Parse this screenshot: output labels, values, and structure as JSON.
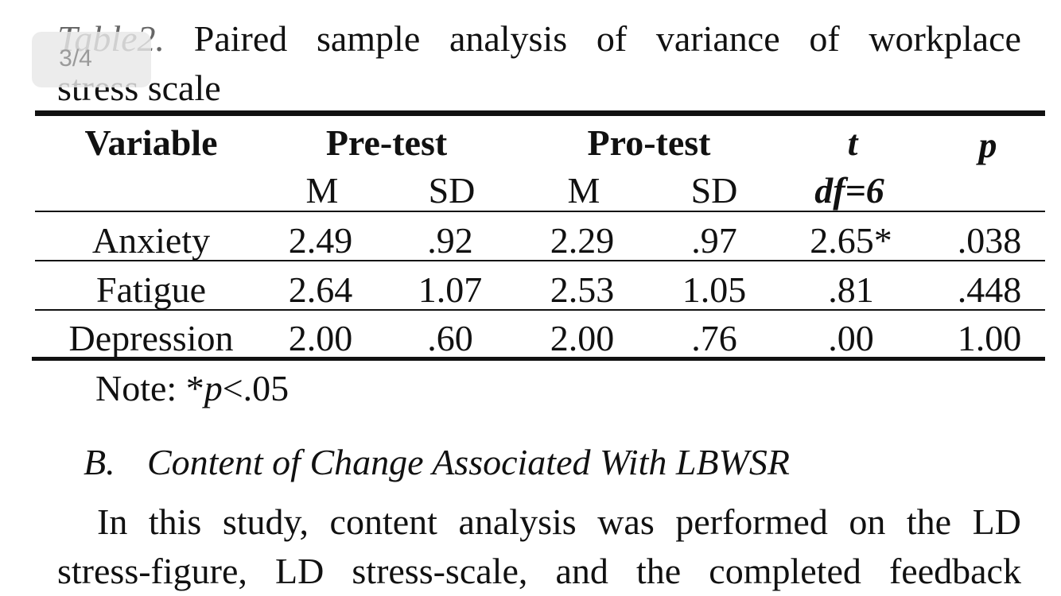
{
  "overlay": {
    "page_counter": "3/4"
  },
  "caption": {
    "label": "Table2.",
    "line1_words": [
      "Paired",
      "sample",
      "analysis",
      "of",
      "variance",
      "of",
      "workplace"
    ],
    "line2": "stress scale"
  },
  "table": {
    "headers": {
      "variable": "Variable",
      "pre_test": "Pre-test",
      "pro_test": "Pro-test",
      "t": "t",
      "p": "p"
    },
    "subheaders": {
      "pre_m": "M",
      "pre_sd": "SD",
      "pro_m": "M",
      "pro_sd": "SD",
      "df": "df=6"
    },
    "rows": [
      {
        "variable": "Anxiety",
        "pre_m": "2.49",
        "pre_sd": ".92",
        "pro_m": "2.29",
        "pro_sd": ".97",
        "t": "2.65*",
        "p": ".038"
      },
      {
        "variable": "Fatigue",
        "pre_m": "2.64",
        "pre_sd": "1.07",
        "pro_m": "2.53",
        "pro_sd": "1.05",
        "t": ".81",
        "p": ".448"
      },
      {
        "variable": "Depression",
        "pre_m": "2.00",
        "pre_sd": ".60",
        "pro_m": "2.00",
        "pro_sd": ".76",
        "t": ".00",
        "p": "1.00"
      }
    ],
    "note_prefix": "Note: *",
    "note_p": "p",
    "note_suffix": "<.05"
  },
  "section": {
    "number": "B.",
    "title": "Content of Change Associated With LBWSR"
  },
  "paragraph": {
    "line1_words": [
      "In",
      "this",
      "study,",
      "content",
      "analysis",
      "was",
      "performed",
      "on",
      "the",
      "LD"
    ],
    "line2_words": [
      "stress-figure,",
      "LD",
      "stress-scale,",
      "and",
      "the",
      "completed",
      "feedback"
    ]
  }
}
